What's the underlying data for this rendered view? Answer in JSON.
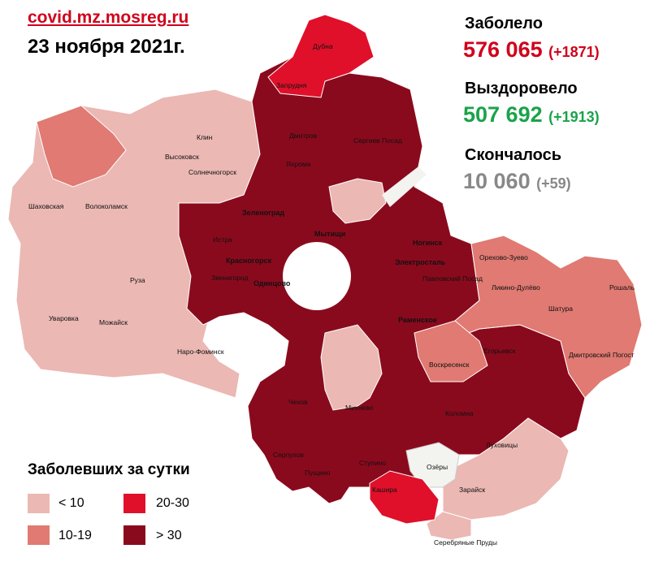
{
  "header": {
    "source": "covid.mz.mosreg.ru",
    "date": "23 ноября 2021г."
  },
  "stats": {
    "infected": {
      "label": "Заболело",
      "value": "576 065",
      "delta": "(+1871)",
      "color": "#d0021b"
    },
    "recovered": {
      "label": "Выздоровело",
      "value": "507 692",
      "delta": "(+1913)",
      "color": "#1aa34a"
    },
    "died": {
      "label": "Скончалось",
      "value": "10 060",
      "delta": "(+59)",
      "color": "#888888"
    }
  },
  "legend": {
    "title": "Заболевших за сутки",
    "items": [
      {
        "label": "< 10",
        "color": "#ebb8b3"
      },
      {
        "label": "10-19",
        "color": "#e07a72"
      },
      {
        "label": "20-30",
        "color": "#e0102a"
      },
      {
        "label": "> 30",
        "color": "#8a0a1d"
      }
    ]
  },
  "colors": {
    "lt10": "#ebb8b3",
    "c10_19": "#e07a72",
    "c20_30": "#e0102a",
    "gt30": "#8a0a1d",
    "white": "#f3f3f0"
  },
  "cities": [
    "Дубна",
    "Запрудня",
    "Клин",
    "Высоковск",
    "Дмитров",
    "Яхрома",
    "Сергиев Посад",
    "Солнечногорск",
    "Шаховская",
    "Волоколамск",
    "Зеленоград",
    "Истра",
    "Мытищи",
    "Ногинск",
    "Электросталь",
    "Орехово-Зуево",
    "Ликино-Дулёво",
    "Рошаль",
    "Красногорск",
    "Звенигород",
    "Павловский Посад",
    "Одинцово",
    "Руза",
    "Уваровка",
    "Можайск",
    "Наро-Фоминск",
    "Шатура",
    "Раменское",
    "Егорьевск",
    "Воскресенск",
    "Дмитровский Погост",
    "Чехов",
    "Коломна",
    "Михнево",
    "Серпухов",
    "Пущино",
    "Ступино",
    "Озёры",
    "Луховицы",
    "Кашира",
    "Зарайск",
    "Серебряные Пруды"
  ]
}
